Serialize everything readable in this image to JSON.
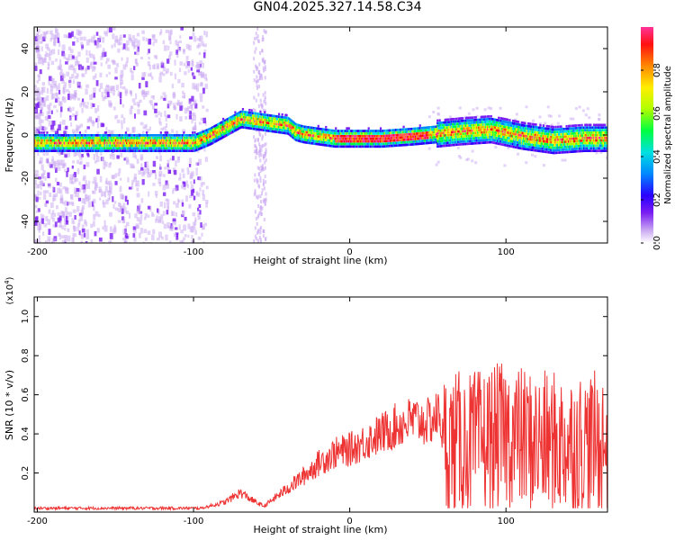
{
  "title": "GN04.2025.327.14.58.C34",
  "chart_data": [
    {
      "type": "heatmap",
      "name": "spectrogram",
      "xlabel": "Height of straight line (km)",
      "ylabel": "Frequency (Hz)",
      "xlim": [
        -202,
        165
      ],
      "ylim": [
        -50,
        50
      ],
      "xticks": [
        -200,
        -100,
        0,
        100
      ],
      "yticks": [
        -40,
        -20,
        0,
        20,
        40
      ],
      "colorbar": {
        "label": "Normalized spectral amplitude",
        "range": [
          0,
          1
        ],
        "ticks": [
          "0.0",
          "0.2",
          "0.4",
          "0.6",
          "0.8"
        ]
      },
      "ridge": {
        "description": "Dominant frequency ridge (Hz) vs height (km)",
        "x": [
          -202,
          -170,
          -140,
          -120,
          -100,
          -90,
          -80,
          -70,
          -60,
          -50,
          -40,
          -35,
          -30,
          -20,
          -10,
          0,
          20,
          40,
          55,
          70,
          90,
          110,
          130,
          150,
          165
        ],
        "y": [
          -3,
          -3,
          -3,
          -3,
          -3,
          0,
          4,
          8,
          7,
          6,
          5,
          2,
          1,
          0,
          -1,
          -1,
          -1,
          0,
          1,
          2,
          3,
          0,
          -2,
          -1,
          -1
        ]
      }
    },
    {
      "type": "line",
      "name": "snr",
      "xlabel": "Height of straight line (km)",
      "ylabel": "SNR (10 * v/v)",
      "multiplier": "(x10",
      "multiplier_exp": "4",
      "multiplier_close": ")",
      "xlim": [
        -202,
        165
      ],
      "ylim": [
        0,
        1.1
      ],
      "xticks": [
        -200,
        -100,
        0,
        100
      ],
      "yticks": [
        0.2,
        0.4,
        0.6,
        0.8,
        1.0
      ],
      "color": "#ee3333",
      "envelope": {
        "description": "Approximate trend of SNR (x10^4) vs height (km); noisy band above 60 km",
        "x": [
          -202,
          -150,
          -110,
          -95,
          -80,
          -70,
          -60,
          -55,
          -40,
          -30,
          -20,
          -10,
          0,
          10,
          20,
          30,
          40,
          50,
          58,
          60,
          80,
          100,
          120,
          140,
          165
        ],
        "y": [
          0.02,
          0.02,
          0.02,
          0.02,
          0.05,
          0.1,
          0.05,
          0.03,
          0.12,
          0.18,
          0.25,
          0.3,
          0.32,
          0.36,
          0.4,
          0.44,
          0.47,
          0.46,
          0.5,
          0.35,
          0.35,
          0.4,
          0.35,
          0.35,
          0.35
        ]
      }
    }
  ]
}
